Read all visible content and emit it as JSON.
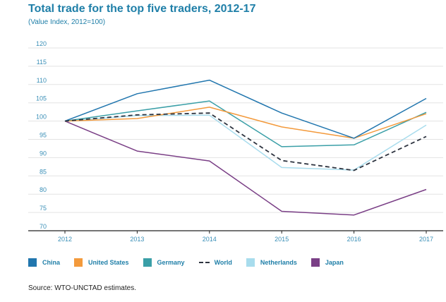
{
  "header": {
    "title": "Total trade for the top five traders, 2012-17",
    "subtitle": "(Value Index, 2012=100)"
  },
  "source": "Source: WTO-UNCTAD estimates.",
  "chart_data": {
    "type": "line",
    "title": "Total trade for the top five traders, 2012-17",
    "subtitle": "(Value Index, 2012=100)",
    "x": [
      "2012",
      "2013",
      "2014",
      "2015",
      "2016",
      "2017"
    ],
    "ylim": [
      70,
      120
    ],
    "yticks": [
      70,
      75,
      80,
      85,
      90,
      95,
      100,
      105,
      110,
      115,
      120
    ],
    "grid": true,
    "legend_position": "bottom",
    "series": [
      {
        "name": "China",
        "color": "#2176ae",
        "dash": false,
        "values": [
          100,
          107.5,
          111.2,
          102.2,
          95.3,
          106.2
        ]
      },
      {
        "name": "United States",
        "color": "#f39a3c",
        "dash": false,
        "values": [
          100,
          100.7,
          103.8,
          98.4,
          95.3,
          102
        ]
      },
      {
        "name": "Germany",
        "color": "#3a9fa7",
        "dash": false,
        "values": [
          100,
          102.8,
          105.5,
          93,
          93.5,
          102.4
        ]
      },
      {
        "name": "World",
        "color": "#2e3440",
        "dash": true,
        "values": [
          100,
          101.7,
          102.2,
          89.2,
          86.5,
          95.8
        ]
      },
      {
        "name": "Netherlands",
        "color": "#a8dced",
        "dash": false,
        "values": [
          100,
          101.5,
          101.6,
          87.3,
          86.6,
          98.9
        ]
      },
      {
        "name": "Japan",
        "color": "#7a3f86",
        "dash": false,
        "values": [
          100,
          91.8,
          89.1,
          75.3,
          74.3,
          81.3
        ]
      }
    ]
  }
}
